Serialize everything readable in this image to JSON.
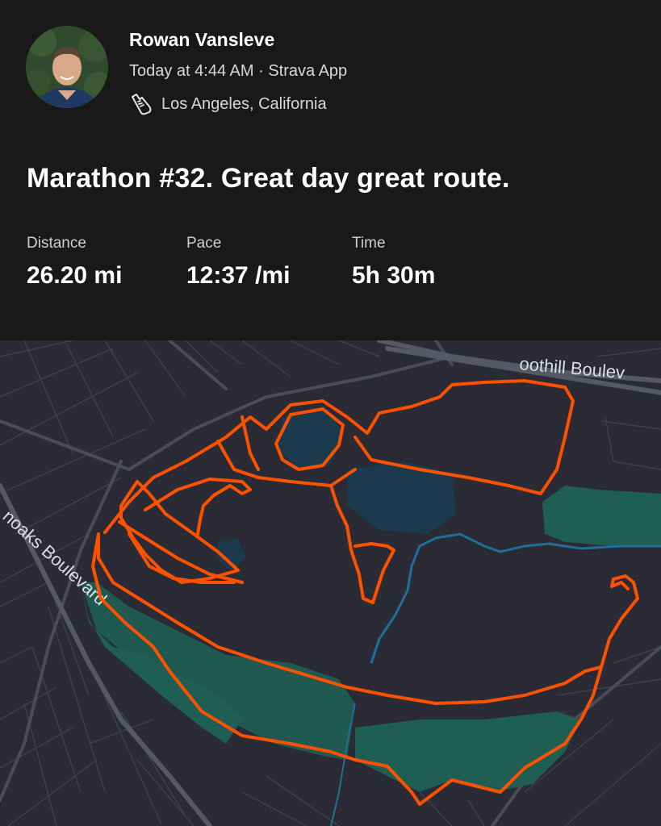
{
  "athlete": {
    "name": "Rowan Vansleve",
    "meta": "Today at 4:44 AM · Strava App",
    "location": "Los Angeles, California"
  },
  "activity": {
    "title": "Marathon #32. Great day great route."
  },
  "stats": [
    {
      "label": "Distance",
      "value": "26.20 mi"
    },
    {
      "label": "Pace",
      "value": "12:37 /mi"
    },
    {
      "label": "Time",
      "value": "5h 30m"
    }
  ],
  "map": {
    "streets": [
      "oothill Boulev",
      "noaks Boulevard"
    ],
    "route_color": "#fc5200",
    "park_color": "#1f5e52",
    "water_color": "#1b3a4d",
    "stream_color": "#1f6f9a"
  },
  "icons": {
    "shoe": "running-shoe-icon"
  }
}
